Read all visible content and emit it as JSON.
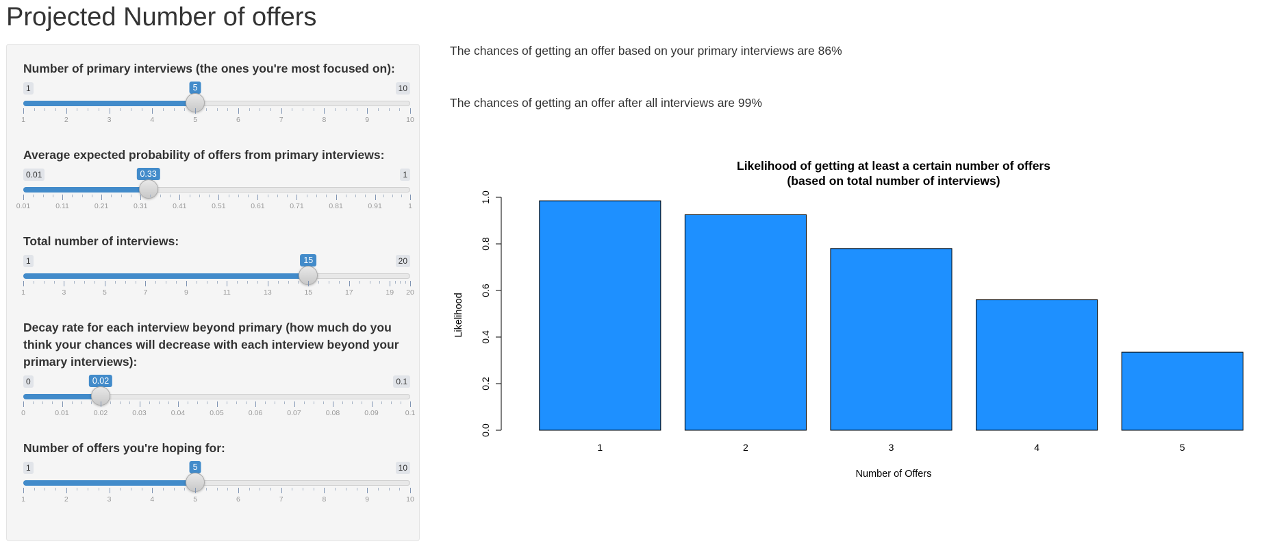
{
  "page": {
    "title": "Projected Number of offers"
  },
  "sliders": [
    {
      "label": "Number of primary interviews (the ones you're most focused on):",
      "min": 1,
      "max": 10,
      "value": 5,
      "min_label": "1",
      "max_label": "10",
      "value_label": "5",
      "tick_labels": [
        "1",
        "2",
        "3",
        "4",
        "5",
        "6",
        "7",
        "8",
        "9",
        "10"
      ]
    },
    {
      "label": "Average expected probability of offers from primary interviews:",
      "min": 0.01,
      "max": 1,
      "value": 0.33,
      "min_label": "0.01",
      "max_label": "1",
      "value_label": "0.33",
      "tick_labels": [
        "0.01",
        "0.11",
        "0.21",
        "0.31",
        "0.41",
        "0.51",
        "0.61",
        "0.71",
        "0.81",
        "0.91",
        "1"
      ]
    },
    {
      "label": "Total number of interviews:",
      "min": 1,
      "max": 20,
      "value": 15,
      "min_label": "1",
      "max_label": "20",
      "value_label": "15",
      "tick_labels": [
        "1",
        "3",
        "5",
        "7",
        "9",
        "11",
        "13",
        "15",
        "17",
        "19",
        "20"
      ]
    },
    {
      "label": "Decay rate for each interview beyond primary (how much do you think your chances will decrease with each interview beyond your primary interviews):",
      "min": 0,
      "max": 0.1,
      "value": 0.02,
      "min_label": "0",
      "max_label": "0.1",
      "value_label": "0.02",
      "tick_labels": [
        "0",
        "0.01",
        "0.02",
        "0.03",
        "0.04",
        "0.05",
        "0.06",
        "0.07",
        "0.08",
        "0.09",
        "0.1"
      ]
    },
    {
      "label": "Number of offers you're hoping for:",
      "min": 1,
      "max": 10,
      "value": 5,
      "min_label": "1",
      "max_label": "10",
      "value_label": "5",
      "tick_labels": [
        "1",
        "2",
        "3",
        "4",
        "5",
        "6",
        "7",
        "8",
        "9",
        "10"
      ]
    }
  ],
  "results": {
    "primary_text": "The chances of getting an offer based on your primary interviews are 86%",
    "all_text": "The chances of getting an offer after all interviews are 99%"
  },
  "colors": {
    "accent": "#428bca",
    "bar_fill": "#1e90ff",
    "panel_bg": "#f5f5f5"
  },
  "chart_data": {
    "type": "bar",
    "title": "Likelihood of getting at least a certain number of offers",
    "subtitle": "(based on total number of interviews)",
    "xlabel": "Number of Offers",
    "ylabel": "Likelihood",
    "categories": [
      "1",
      "2",
      "3",
      "4",
      "5"
    ],
    "values": [
      0.985,
      0.925,
      0.78,
      0.56,
      0.335
    ],
    "ylim": [
      0,
      1
    ],
    "yticks": [
      "0.0",
      "0.2",
      "0.4",
      "0.6",
      "0.8",
      "1.0"
    ],
    "grid": false
  }
}
